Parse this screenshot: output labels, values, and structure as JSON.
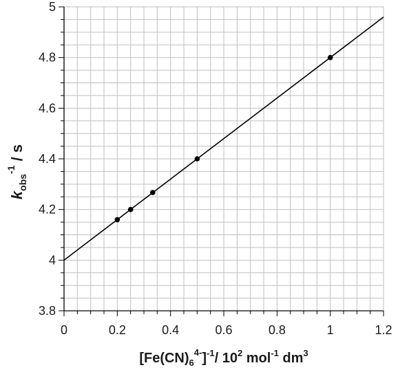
{
  "chart_data": {
    "type": "scatter",
    "title": "",
    "xlabel": {
      "prefix": "[Fe(CN)",
      "sub": "6",
      "sup": "4-",
      "suffix": "]",
      "sup2": "-1",
      "unit_prefix": "/ 10",
      "unit_sup": "2",
      "unit_mol": " mol",
      "unit_mol_sup": "-1",
      "unit_dm": " dm",
      "unit_dm_sup": "3"
    },
    "ylabel": {
      "k": "k",
      "sub": "obs",
      "sup": "-1",
      "unit": " / s"
    },
    "xlim": [
      0,
      1.2
    ],
    "ylim": [
      3.8,
      5
    ],
    "x_ticks": [
      "0",
      "0.2",
      "0.4",
      "0.6",
      "0.8",
      "1",
      "1.2"
    ],
    "y_ticks": [
      "3.8",
      "4",
      "4.2",
      "4.4",
      "4.6",
      "4.8",
      "5"
    ],
    "grid": true,
    "points": [
      {
        "x": 0.2,
        "y": 4.16
      },
      {
        "x": 0.25,
        "y": 4.2
      },
      {
        "x": 0.333,
        "y": 4.267
      },
      {
        "x": 0.5,
        "y": 4.4
      },
      {
        "x": 1.0,
        "y": 4.8
      }
    ],
    "fit_line": {
      "intercept": 4.0,
      "slope": 0.8
    },
    "colors": {
      "grid": "#bfbfbf",
      "axis": "#000000",
      "line": "#000000",
      "marker": "#000000"
    }
  }
}
